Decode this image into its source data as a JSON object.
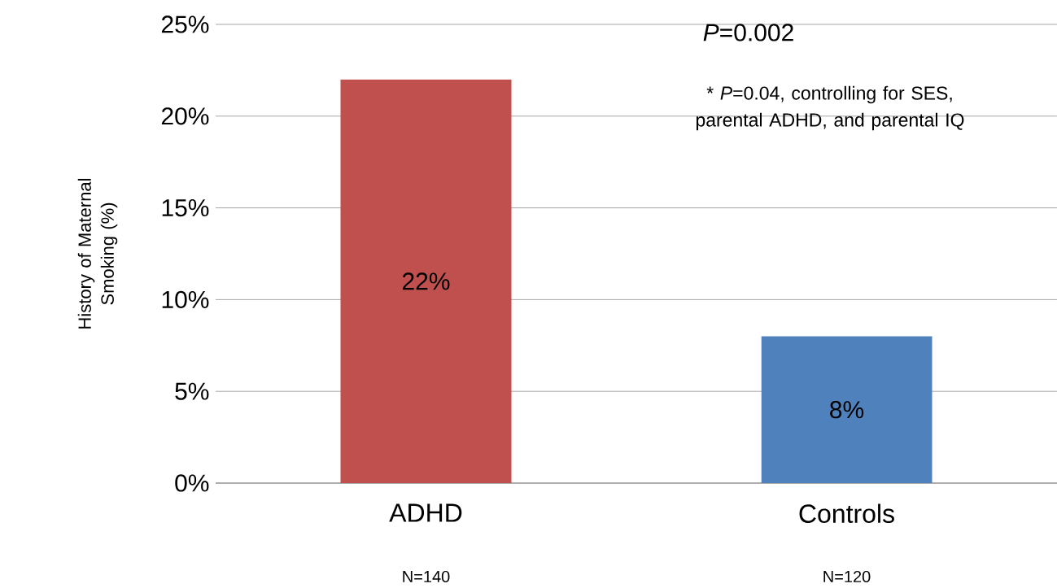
{
  "chart_data": {
    "type": "bar",
    "categories": [
      "ADHD",
      "Controls"
    ],
    "values": [
      22,
      8
    ],
    "colors": [
      "#c0504d",
      "#4f81bd"
    ],
    "value_labels": [
      "22%",
      "8%"
    ],
    "ylabel": "History of Maternal Smoking (%)",
    "ylim": [
      0,
      25
    ],
    "yticks": [
      {
        "value": 0,
        "label": "0%"
      },
      {
        "value": 5,
        "label": "5%"
      },
      {
        "value": 10,
        "label": "10%"
      },
      {
        "value": 15,
        "label": "15%"
      },
      {
        "value": 20,
        "label": "20%"
      },
      {
        "value": 25,
        "label": "25%"
      }
    ],
    "grid": "y",
    "annotations": [
      "*P*=0.002",
      "* *P*=0.04, controlling for SES, parental ADHD, and parental IQ",
      "N=140",
      "N=120"
    ]
  }
}
